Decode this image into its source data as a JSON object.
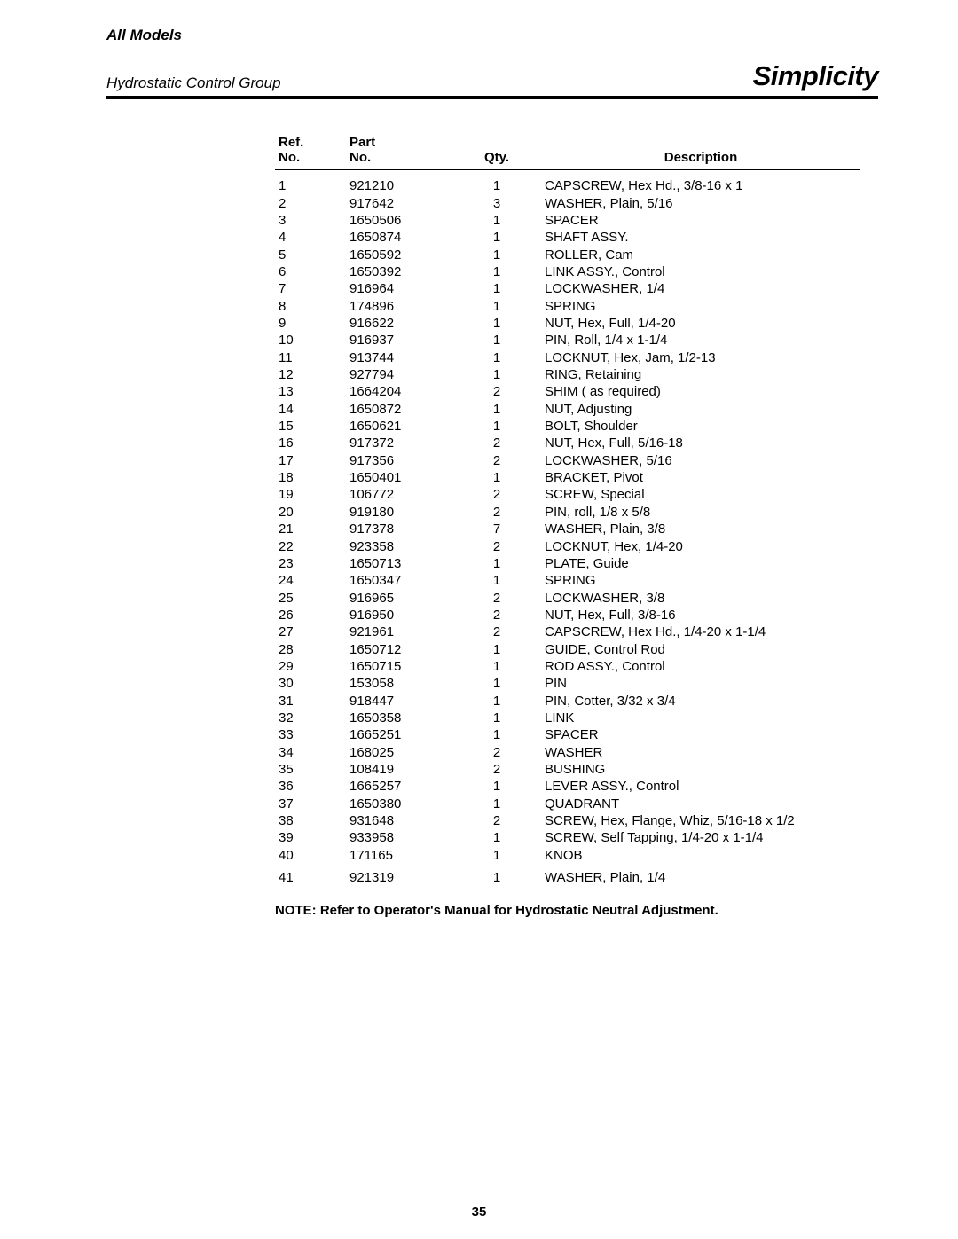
{
  "header": {
    "models": "All Models",
    "group": "Hydrostatic Control Group",
    "brand": "Simplicity"
  },
  "table": {
    "columns": {
      "ref_l1": "Ref.",
      "ref_l2": "No.",
      "part_l1": "Part",
      "part_l2": "No.",
      "qty": "Qty.",
      "desc": "Description"
    },
    "rows": [
      {
        "ref": "1",
        "part": "921210",
        "qty": "1",
        "desc": "CAPSCREW, Hex Hd., 3/8-16 x 1"
      },
      {
        "ref": "2",
        "part": "917642",
        "qty": "3",
        "desc": "WASHER, Plain, 5/16"
      },
      {
        "ref": "3",
        "part": "1650506",
        "qty": "1",
        "desc": "SPACER"
      },
      {
        "ref": "4",
        "part": "1650874",
        "qty": "1",
        "desc": "SHAFT ASSY."
      },
      {
        "ref": "5",
        "part": "1650592",
        "qty": "1",
        "desc": "ROLLER, Cam"
      },
      {
        "ref": "6",
        "part": "1650392",
        "qty": "1",
        "desc": "LINK ASSY., Control"
      },
      {
        "ref": "7",
        "part": "916964",
        "qty": "1",
        "desc": "LOCKWASHER, 1/4"
      },
      {
        "ref": "8",
        "part": "174896",
        "qty": "1",
        "desc": "SPRING"
      },
      {
        "ref": "9",
        "part": "916622",
        "qty": "1",
        "desc": "NUT, Hex, Full, 1/4-20"
      },
      {
        "ref": "10",
        "part": "916937",
        "qty": "1",
        "desc": "PIN, Roll, 1/4 x 1-1/4"
      },
      {
        "ref": "11",
        "part": "913744",
        "qty": "1",
        "desc": "LOCKNUT, Hex, Jam, 1/2-13"
      },
      {
        "ref": "12",
        "part": "927794",
        "qty": "1",
        "desc": "RING, Retaining"
      },
      {
        "ref": "13",
        "part": "1664204",
        "qty": "2",
        "desc": "SHIM ( as required)"
      },
      {
        "ref": "14",
        "part": "1650872",
        "qty": "1",
        "desc": "NUT, Adjusting"
      },
      {
        "ref": "15",
        "part": "1650621",
        "qty": "1",
        "desc": "BOLT, Shoulder"
      },
      {
        "ref": "16",
        "part": "917372",
        "qty": "2",
        "desc": "NUT, Hex, Full, 5/16-18"
      },
      {
        "ref": "17",
        "part": "917356",
        "qty": "2",
        "desc": "LOCKWASHER, 5/16"
      },
      {
        "ref": "18",
        "part": "1650401",
        "qty": "1",
        "desc": "BRACKET, Pivot"
      },
      {
        "ref": "19",
        "part": "106772",
        "qty": "2",
        "desc": "SCREW, Special"
      },
      {
        "ref": "20",
        "part": "919180",
        "qty": "2",
        "desc": "PIN, roll, 1/8 x 5/8"
      },
      {
        "ref": "21",
        "part": "917378",
        "qty": "7",
        "desc": "WASHER, Plain, 3/8"
      },
      {
        "ref": "22",
        "part": "923358",
        "qty": "2",
        "desc": "LOCKNUT, Hex, 1/4-20"
      },
      {
        "ref": "23",
        "part": "1650713",
        "qty": "1",
        "desc": "PLATE, Guide"
      },
      {
        "ref": "24",
        "part": "1650347",
        "qty": "1",
        "desc": "SPRING"
      },
      {
        "ref": "25",
        "part": "916965",
        "qty": "2",
        "desc": "LOCKWASHER, 3/8"
      },
      {
        "ref": "26",
        "part": "916950",
        "qty": "2",
        "desc": "NUT, Hex, Full, 3/8-16"
      },
      {
        "ref": "27",
        "part": "921961",
        "qty": "2",
        "desc": "CAPSCREW, Hex Hd., 1/4-20 x 1-1/4"
      },
      {
        "ref": "28",
        "part": "1650712",
        "qty": "1",
        "desc": "GUIDE, Control Rod"
      },
      {
        "ref": "29",
        "part": "1650715",
        "qty": "1",
        "desc": "ROD ASSY., Control"
      },
      {
        "ref": "30",
        "part": "153058",
        "qty": "1",
        "desc": "PIN"
      },
      {
        "ref": "31",
        "part": "918447",
        "qty": "1",
        "desc": "PIN, Cotter, 3/32 x 3/4"
      },
      {
        "ref": "32",
        "part": "1650358",
        "qty": "1",
        "desc": "LINK"
      },
      {
        "ref": "33",
        "part": "1665251",
        "qty": "1",
        "desc": "SPACER"
      },
      {
        "ref": "34",
        "part": "168025",
        "qty": "2",
        "desc": "WASHER"
      },
      {
        "ref": "35",
        "part": "108419",
        "qty": "2",
        "desc": "BUSHING"
      },
      {
        "ref": "36",
        "part": "1665257",
        "qty": "1",
        "desc": "LEVER ASSY., Control"
      },
      {
        "ref": "37",
        "part": "1650380",
        "qty": "1",
        "desc": "QUADRANT"
      },
      {
        "ref": "38",
        "part": "931648",
        "qty": "2",
        "desc": "SCREW, Hex, Flange, Whiz, 5/16-18 x 1/2"
      },
      {
        "ref": "39",
        "part": "933958",
        "qty": "1",
        "desc": "SCREW, Self Tapping, 1/4-20 x 1-1/4"
      },
      {
        "ref": "40",
        "part": "171165",
        "qty": "1",
        "desc": "KNOB"
      },
      {
        "ref": "41",
        "part": "921319",
        "qty": "1",
        "desc": "WASHER, Plain, 1/4"
      }
    ]
  },
  "note": {
    "label": "NOTE: Refer to Operator's Manual for Hydrostatic Neutral Adjustment."
  },
  "page_number": "35"
}
